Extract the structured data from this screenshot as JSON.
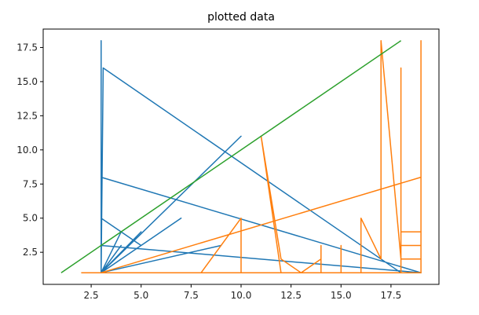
{
  "chart_data": {
    "type": "line",
    "title": "plotted data",
    "xlabel": "",
    "ylabel": "",
    "xlim": [
      0.1,
      19.9
    ],
    "ylim": [
      0.15,
      18.85
    ],
    "xticks": [
      2.5,
      5.0,
      7.5,
      10.0,
      12.5,
      15.0,
      17.5
    ],
    "xtick_labels": [
      "2.5",
      "5.0",
      "7.5",
      "10.0",
      "12.5",
      "15.0",
      "17.5"
    ],
    "yticks": [
      2.5,
      5.0,
      7.5,
      10.0,
      12.5,
      15.0,
      17.5
    ],
    "ytick_labels": [
      "2.5",
      "5.0",
      "7.5",
      "10.0",
      "12.5",
      "15.0",
      "17.5"
    ],
    "grid": false,
    "legend": null,
    "series": [
      {
        "color": "#1f77b4",
        "points": [
          [
            3,
            18
          ],
          [
            3,
            1
          ],
          [
            3.1,
            16
          ],
          [
            3,
            1
          ],
          [
            3,
            8
          ],
          [
            19,
            1
          ],
          [
            3,
            1
          ],
          [
            4,
            3
          ],
          [
            3,
            1
          ],
          [
            5,
            4
          ],
          [
            3,
            1
          ],
          [
            7,
            5
          ],
          [
            3,
            1
          ],
          [
            10,
            11
          ],
          [
            3,
            1
          ],
          [
            4,
            2
          ],
          [
            3,
            1
          ],
          [
            14,
            1
          ],
          [
            3,
            1
          ],
          [
            19,
            1
          ],
          [
            3,
            1
          ],
          [
            3,
            5
          ],
          [
            5,
            3
          ],
          [
            3,
            1
          ],
          [
            4,
            4
          ],
          [
            3,
            1
          ],
          [
            6,
            2
          ],
          [
            3,
            1
          ],
          [
            3,
            3
          ],
          [
            19,
            1
          ],
          [
            3,
            1
          ],
          [
            3.1,
            16
          ],
          [
            18,
            1
          ],
          [
            3,
            1
          ],
          [
            4,
            2
          ],
          [
            3,
            1
          ],
          [
            14,
            1
          ],
          [
            3,
            1
          ],
          [
            9,
            3
          ],
          [
            3,
            1
          ],
          [
            3,
            18
          ],
          [
            3,
            1
          ]
        ]
      },
      {
        "color": "#ff7f0e",
        "points": [
          [
            2,
            1
          ],
          [
            10,
            1
          ],
          [
            12,
            1
          ],
          [
            11,
            11
          ],
          [
            12,
            2
          ],
          [
            13,
            1
          ],
          [
            14,
            2
          ],
          [
            14,
            3
          ],
          [
            14,
            1
          ],
          [
            16,
            1
          ],
          [
            16,
            5
          ],
          [
            17,
            2
          ],
          [
            17,
            18
          ],
          [
            18,
            2
          ],
          [
            19,
            2
          ],
          [
            18,
            2
          ],
          [
            18,
            1
          ],
          [
            10,
            1
          ],
          [
            10,
            5
          ],
          [
            8,
            1
          ],
          [
            15,
            1
          ],
          [
            15,
            3
          ],
          [
            15,
            1
          ],
          [
            19,
            1
          ],
          [
            19,
            18
          ],
          [
            19,
            3
          ],
          [
            18,
            3
          ],
          [
            19,
            3
          ],
          [
            19,
            4
          ],
          [
            18,
            4
          ],
          [
            18,
            16
          ],
          [
            18,
            1
          ],
          [
            19,
            1
          ],
          [
            19,
            8
          ],
          [
            3,
            1
          ]
        ]
      },
      {
        "color": "#2ca02c",
        "points": [
          [
            1,
            1
          ],
          [
            18,
            18
          ]
        ]
      }
    ]
  }
}
